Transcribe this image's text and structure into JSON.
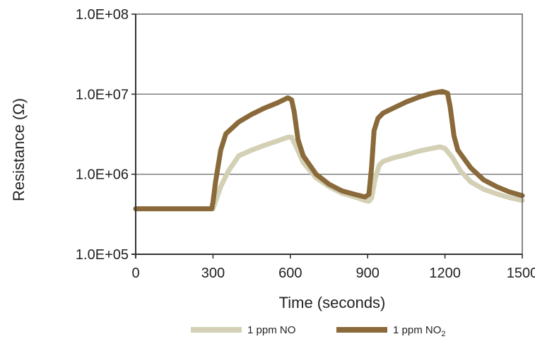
{
  "chart_data": {
    "type": "line",
    "xlabel": "Time (seconds)",
    "ylabel": "Resistance (Ω)",
    "xlim": [
      0,
      1500
    ],
    "ylim": [
      100000,
      100000000
    ],
    "yscale": "log",
    "x_ticks": [
      "0",
      "300",
      "600",
      "900",
      "1200",
      "1500"
    ],
    "x_tick_values": [
      0,
      300,
      600,
      900,
      1200,
      1500
    ],
    "y_ticks": [
      "1.0E+05",
      "1.0E+06",
      "1.0E+07",
      "1.0E+08"
    ],
    "y_tick_values": [
      100000,
      1000000,
      10000000,
      100000000
    ],
    "grid": "horizontal",
    "legend_position": "bottom",
    "series": [
      {
        "name": "1 ppm NO",
        "name_sub": "",
        "color": "#d3d0b5",
        "points": [
          [
            0,
            370000
          ],
          [
            290,
            370000
          ],
          [
            300,
            370000
          ],
          [
            330,
            700000
          ],
          [
            360,
            1100000
          ],
          [
            400,
            1700000
          ],
          [
            450,
            2000000
          ],
          [
            500,
            2300000
          ],
          [
            550,
            2600000
          ],
          [
            590,
            2900000
          ],
          [
            605,
            2900000
          ],
          [
            620,
            2300000
          ],
          [
            650,
            1400000
          ],
          [
            700,
            900000
          ],
          [
            750,
            700000
          ],
          [
            800,
            580000
          ],
          [
            850,
            520000
          ],
          [
            890,
            470000
          ],
          [
            905,
            460000
          ],
          [
            915,
            500000
          ],
          [
            930,
            900000
          ],
          [
            945,
            1300000
          ],
          [
            960,
            1450000
          ],
          [
            1000,
            1600000
          ],
          [
            1050,
            1750000
          ],
          [
            1100,
            1950000
          ],
          [
            1150,
            2100000
          ],
          [
            1180,
            2200000
          ],
          [
            1200,
            2100000
          ],
          [
            1230,
            1600000
          ],
          [
            1260,
            1100000
          ],
          [
            1300,
            800000
          ],
          [
            1350,
            650000
          ],
          [
            1400,
            570000
          ],
          [
            1450,
            510000
          ],
          [
            1500,
            470000
          ]
        ]
      },
      {
        "name": "1 ppm NO",
        "name_sub": "2",
        "color": "#8a6a3a",
        "points": [
          [
            0,
            370000
          ],
          [
            295,
            370000
          ],
          [
            300,
            450000
          ],
          [
            310,
            800000
          ],
          [
            330,
            2000000
          ],
          [
            350,
            3200000
          ],
          [
            400,
            4500000
          ],
          [
            450,
            5600000
          ],
          [
            500,
            6700000
          ],
          [
            550,
            7800000
          ],
          [
            590,
            9000000
          ],
          [
            605,
            8500000
          ],
          [
            615,
            6000000
          ],
          [
            630,
            2700000
          ],
          [
            650,
            1700000
          ],
          [
            700,
            1000000
          ],
          [
            750,
            750000
          ],
          [
            800,
            620000
          ],
          [
            850,
            560000
          ],
          [
            890,
            520000
          ],
          [
            905,
            560000
          ],
          [
            915,
            1200000
          ],
          [
            925,
            3500000
          ],
          [
            940,
            5000000
          ],
          [
            960,
            5800000
          ],
          [
            1000,
            6700000
          ],
          [
            1050,
            8000000
          ],
          [
            1100,
            9200000
          ],
          [
            1150,
            10300000
          ],
          [
            1190,
            10800000
          ],
          [
            1210,
            10300000
          ],
          [
            1220,
            7000000
          ],
          [
            1235,
            3000000
          ],
          [
            1250,
            2000000
          ],
          [
            1300,
            1200000
          ],
          [
            1350,
            850000
          ],
          [
            1400,
            700000
          ],
          [
            1450,
            600000
          ],
          [
            1500,
            540000
          ]
        ]
      }
    ]
  }
}
